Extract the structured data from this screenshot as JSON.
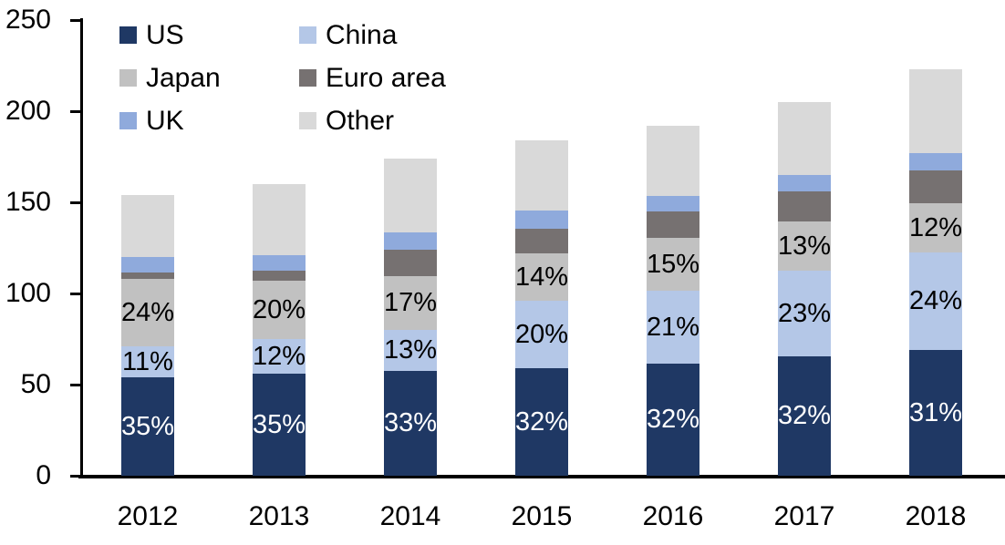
{
  "chart_data": {
    "type": "bar",
    "stacked": true,
    "title": "",
    "categories": [
      "2012",
      "2013",
      "2014",
      "2015",
      "2016",
      "2017",
      "2018"
    ],
    "y_axis": {
      "min": 0,
      "max": 250,
      "step": 50,
      "tick_labels": [
        "0",
        "50",
        "100",
        "150",
        "200",
        "250"
      ]
    },
    "totals": [
      154,
      160,
      174,
      184,
      192,
      205,
      223
    ],
    "series": [
      {
        "name": "US",
        "color": "#1F3864",
        "values": [
          54,
          56,
          57.5,
          59,
          61.5,
          65.5,
          69
        ],
        "segment_labels": [
          "35%",
          "35%",
          "33%",
          "32%",
          "32%",
          "32%",
          "31%"
        ],
        "label_color": "#FFFFFF"
      },
      {
        "name": "China",
        "color": "#B4C7E7",
        "values": [
          17,
          19,
          22.5,
          37,
          40,
          47,
          53.5
        ],
        "segment_labels": [
          "11%",
          "12%",
          "13%",
          "20%",
          "21%",
          "23%",
          "24%"
        ],
        "label_color": "#000000"
      },
      {
        "name": "Japan",
        "color": "#C1C1C1",
        "values": [
          37,
          32,
          29.5,
          26,
          29,
          27,
          27
        ],
        "segment_labels": [
          "24%",
          "20%",
          "17%",
          "14%",
          "15%",
          "13%",
          "12%"
        ],
        "label_color": "#000000"
      },
      {
        "name": "Euro area",
        "color": "#767171",
        "values": [
          3.5,
          5.5,
          14.5,
          13.5,
          14.5,
          16.5,
          18
        ],
        "segment_labels": null,
        "label_color": null
      },
      {
        "name": "UK",
        "color": "#8FAADC",
        "values": [
          8.5,
          8.5,
          9.5,
          10,
          8.5,
          9,
          9.5
        ],
        "segment_labels": null,
        "label_color": null
      },
      {
        "name": "Other",
        "color": "#D9D9D9",
        "values": [
          34,
          39,
          40.5,
          38.5,
          38.5,
          40,
          46
        ],
        "segment_labels": null,
        "label_color": null
      }
    ],
    "legend": {
      "position": "top-left",
      "columns": 2,
      "entries": [
        "US",
        "China",
        "Japan",
        "Euro area",
        "UK",
        "Other"
      ]
    },
    "axis_color": "#000000",
    "background": "#FFFFFF",
    "grid": false
  }
}
